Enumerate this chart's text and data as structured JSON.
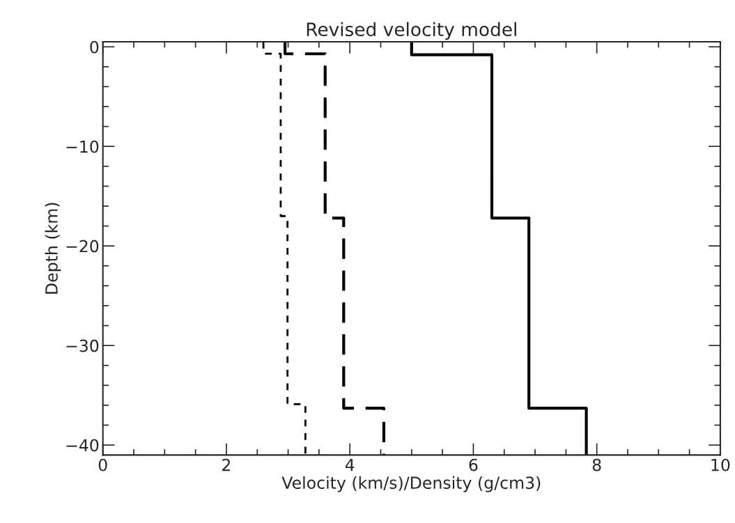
{
  "chart_data": {
    "type": "line",
    "title": "Revised velocity model",
    "xlabel": "Velocity (km/s)/Density (g/cm3)",
    "ylabel": "Depth (km)",
    "xlim": [
      0,
      10
    ],
    "xticks": [
      0,
      2,
      4,
      6,
      8,
      10
    ],
    "ylim": [
      -41,
      0.5
    ],
    "yticks": [
      0,
      -10,
      -20,
      -30,
      -40
    ],
    "grid": false,
    "legend": false,
    "marker": "none",
    "series": [
      {
        "color": "#000000",
        "line_style": "solid",
        "x": [
          5.0,
          5.0,
          6.3,
          6.3,
          6.9,
          6.9,
          7.83,
          7.83
        ],
        "values": [
          0.5,
          -0.8,
          -0.8,
          -17.2,
          -17.2,
          -36.3,
          -36.3,
          -41
        ]
      },
      {
        "color": "#000000",
        "line_style": "dashed",
        "x": [
          2.95,
          2.95,
          3.6,
          3.6,
          3.9,
          3.9,
          4.55,
          4.55
        ],
        "values": [
          0.5,
          -0.7,
          -0.7,
          -17.2,
          -17.2,
          -36.3,
          -36.3,
          -41
        ]
      },
      {
        "color": "#000000",
        "line_style": "dotted",
        "x": [
          2.6,
          2.6,
          2.88,
          2.88,
          2.99,
          2.99,
          3.28,
          3.28
        ],
        "values": [
          0.5,
          -0.7,
          -0.7,
          -17.0,
          -17.0,
          -35.9,
          -35.9,
          -41
        ]
      }
    ]
  }
}
